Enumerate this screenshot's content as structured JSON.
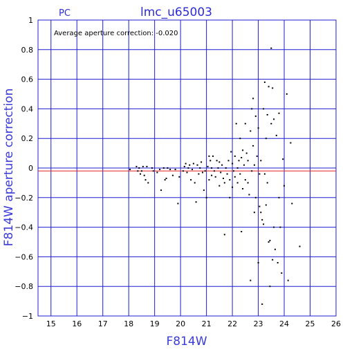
{
  "chart_data": {
    "type": "scatter",
    "title": "lmc_u65003",
    "camera_label": "PC",
    "xlabel": "F814W",
    "ylabel": "F814W aperture correction",
    "annotation": "Average aperture correction: -0.020",
    "xlim": [
      14.5,
      26
    ],
    "ylim": [
      -1,
      1
    ],
    "xticks": [
      15,
      16,
      17,
      18,
      19,
      20,
      21,
      22,
      23,
      24,
      25,
      26
    ],
    "yticks": [
      -1,
      -0.8,
      -0.6,
      -0.4,
      -0.2,
      0,
      0.2,
      0.4,
      0.6,
      0.8,
      1
    ],
    "ytick_labels": [
      "−1",
      "−0.8",
      "−0.6",
      "−0.4",
      "−0.2",
      "0",
      "0.2",
      "0.4",
      "0.6",
      "0.8",
      "1"
    ],
    "grid": true,
    "reference_line": {
      "y": -0.02,
      "color": "#e02020"
    },
    "colors": {
      "frame": "#1c1cd0",
      "grid": "#1c1cd0",
      "points": "#000000",
      "title": "#2b2bd6"
    },
    "points": [
      [
        18.05,
        -0.01
      ],
      [
        18.3,
        0.01
      ],
      [
        18.35,
        -0.02
      ],
      [
        18.4,
        0.0
      ],
      [
        18.45,
        -0.04
      ],
      [
        18.5,
        -0.02
      ],
      [
        18.55,
        0.01
      ],
      [
        18.6,
        -0.05
      ],
      [
        18.65,
        -0.08
      ],
      [
        18.7,
        0.01
      ],
      [
        18.75,
        -0.1
      ],
      [
        18.9,
        0.0
      ],
      [
        18.95,
        -0.02
      ],
      [
        19.1,
        -0.03
      ],
      [
        19.2,
        -0.01
      ],
      [
        19.25,
        -0.15
      ],
      [
        19.35,
        0.0
      ],
      [
        19.4,
        -0.08
      ],
      [
        19.45,
        -0.07
      ],
      [
        19.5,
        0.0
      ],
      [
        19.6,
        -0.01
      ],
      [
        19.7,
        -0.05
      ],
      [
        19.8,
        -0.01
      ],
      [
        19.9,
        -0.24
      ],
      [
        19.95,
        -0.06
      ],
      [
        20.1,
        -0.02
      ],
      [
        20.15,
        0.01
      ],
      [
        20.2,
        0.03
      ],
      [
        20.25,
        -0.03
      ],
      [
        20.3,
        0.0
      ],
      [
        20.35,
        0.02
      ],
      [
        20.4,
        -0.08
      ],
      [
        20.45,
        -0.01
      ],
      [
        20.5,
        0.03
      ],
      [
        20.55,
        -0.1
      ],
      [
        20.6,
        -0.23
      ],
      [
        20.65,
        0.02
      ],
      [
        20.7,
        -0.04
      ],
      [
        20.75,
        0.0
      ],
      [
        20.8,
        0.04
      ],
      [
        20.85,
        -0.03
      ],
      [
        20.9,
        -0.15
      ],
      [
        20.95,
        -0.02
      ],
      [
        21.0,
        -0.2
      ],
      [
        21.05,
        0.01
      ],
      [
        21.1,
        0.08
      ],
      [
        21.1,
        -0.08
      ],
      [
        21.15,
        0.05
      ],
      [
        21.2,
        0.0
      ],
      [
        21.2,
        -0.05
      ],
      [
        21.25,
        0.08
      ],
      [
        21.3,
        -0.02
      ],
      [
        21.35,
        -0.06
      ],
      [
        21.4,
        0.05
      ],
      [
        21.45,
        0.0
      ],
      [
        21.5,
        -0.12
      ],
      [
        21.5,
        0.04
      ],
      [
        21.55,
        -0.03
      ],
      [
        21.6,
        0.02
      ],
      [
        21.65,
        -0.07
      ],
      [
        21.7,
        -0.1
      ],
      [
        21.7,
        -0.45
      ],
      [
        21.75,
        0.0
      ],
      [
        21.8,
        -0.04
      ],
      [
        21.85,
        0.05
      ],
      [
        21.9,
        -0.2
      ],
      [
        21.9,
        -0.08
      ],
      [
        21.95,
        0.11
      ],
      [
        22.0,
        0.03
      ],
      [
        22.0,
        -0.13
      ],
      [
        22.05,
        -0.02
      ],
      [
        22.1,
        0.08
      ],
      [
        22.1,
        -0.06
      ],
      [
        22.15,
        0.3
      ],
      [
        22.2,
        -0.1
      ],
      [
        22.2,
        0.0
      ],
      [
        22.25,
        0.05
      ],
      [
        22.3,
        -0.04
      ],
      [
        22.3,
        0.2
      ],
      [
        22.35,
        -0.43
      ],
      [
        22.35,
        0.07
      ],
      [
        22.4,
        -0.14
      ],
      [
        22.4,
        0.12
      ],
      [
        22.45,
        0.02
      ],
      [
        22.5,
        -0.08
      ],
      [
        22.5,
        0.3
      ],
      [
        22.55,
        0.1
      ],
      [
        22.6,
        -0.1
      ],
      [
        22.6,
        0.05
      ],
      [
        22.65,
        -0.18
      ],
      [
        22.7,
        0.25
      ],
      [
        22.7,
        -0.76
      ],
      [
        22.75,
        0.4
      ],
      [
        22.75,
        -0.02
      ],
      [
        22.8,
        0.47
      ],
      [
        22.8,
        0.15
      ],
      [
        22.85,
        -0.3
      ],
      [
        22.85,
        0.02
      ],
      [
        22.9,
        0.35
      ],
      [
        22.9,
        -0.2
      ],
      [
        22.95,
        0.08
      ],
      [
        23.0,
        -0.64
      ],
      [
        23.0,
        0.27
      ],
      [
        23.05,
        -0.26
      ],
      [
        23.05,
        -0.04
      ],
      [
        23.1,
        0.05
      ],
      [
        23.1,
        -0.3
      ],
      [
        23.15,
        -0.35
      ],
      [
        23.15,
        -0.92
      ],
      [
        23.2,
        -0.38
      ],
      [
        23.2,
        0.4
      ],
      [
        23.25,
        0.58
      ],
      [
        23.25,
        -0.04
      ],
      [
        23.3,
        0.2
      ],
      [
        23.3,
        -0.25
      ],
      [
        23.35,
        0.36
      ],
      [
        23.35,
        -0.1
      ],
      [
        23.4,
        0.55
      ],
      [
        23.4,
        -0.5
      ],
      [
        23.45,
        -0.49
      ],
      [
        23.45,
        -0.8
      ],
      [
        23.5,
        0.81
      ],
      [
        23.5,
        0.3
      ],
      [
        23.55,
        0.54
      ],
      [
        23.55,
        -0.62
      ],
      [
        23.6,
        0.33
      ],
      [
        23.6,
        -0.4
      ],
      [
        23.65,
        -0.55
      ],
      [
        23.7,
        0.22
      ],
      [
        23.75,
        -0.64
      ],
      [
        23.8,
        0.37
      ],
      [
        23.8,
        -0.2
      ],
      [
        23.85,
        -0.4
      ],
      [
        23.9,
        -0.71
      ],
      [
        23.95,
        0.06
      ],
      [
        24.0,
        -0.12
      ],
      [
        24.1,
        0.5
      ],
      [
        24.15,
        -0.76
      ],
      [
        24.25,
        0.17
      ],
      [
        24.3,
        -0.24
      ],
      [
        24.6,
        -0.53
      ]
    ]
  }
}
